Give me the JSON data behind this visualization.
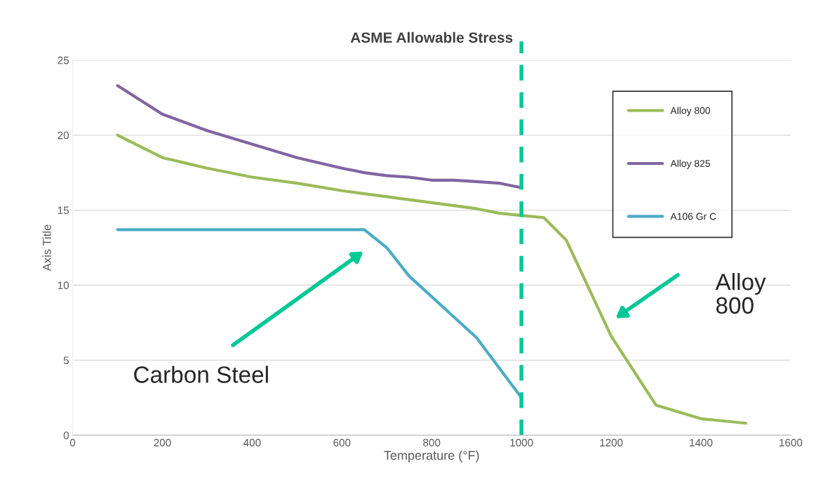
{
  "chart_data": {
    "type": "line",
    "title": "ASME Allowable Stress",
    "xlabel": "Temperature (°F)",
    "ylabel": "Axis Title",
    "xlim": [
      0,
      1600
    ],
    "xticks": [
      0,
      200,
      400,
      600,
      800,
      1000,
      1200,
      1400,
      1600
    ],
    "ylim": [
      0,
      25
    ],
    "yticks": [
      0,
      5,
      10,
      15,
      20,
      25
    ],
    "grid": "y",
    "legend": "top right",
    "marker": "none",
    "line_style": "solid",
    "series": [
      {
        "name": "Alloy 800",
        "color": "#9bbb59",
        "x": [
          100,
          200,
          300,
          400,
          500,
          600,
          700,
          800,
          900,
          950,
          1000,
          1050,
          1100,
          1200,
          1300,
          1400,
          1500
        ],
        "values": [
          20.0,
          18.5,
          17.8,
          17.2,
          16.8,
          16.3,
          15.9,
          15.5,
          15.1,
          14.8,
          14.65,
          14.5,
          13.0,
          6.6,
          2.0,
          1.1,
          0.8
        ]
      },
      {
        "name": "Alloy 825",
        "color": "#8064a2",
        "x": [
          100,
          200,
          300,
          400,
          500,
          600,
          650,
          700,
          750,
          800,
          850,
          900,
          950,
          1000
        ],
        "values": [
          23.3,
          21.4,
          20.3,
          19.4,
          18.5,
          17.8,
          17.5,
          17.3,
          17.2,
          17.0,
          17.0,
          16.9,
          16.8,
          16.5
        ]
      },
      {
        "name": "A106 Gr C",
        "color": "#4bacc6",
        "x": [
          100,
          650,
          700,
          750,
          900,
          1000
        ],
        "values": [
          13.7,
          13.7,
          12.5,
          10.6,
          6.5,
          2.5
        ]
      }
    ],
    "ref_lines": [
      {
        "axis": "x",
        "value": 1000,
        "color": "#00c896",
        "line_style": "dashed"
      }
    ],
    "annotations": [
      "Carbon Steel",
      "Alloy\n800"
    ]
  }
}
